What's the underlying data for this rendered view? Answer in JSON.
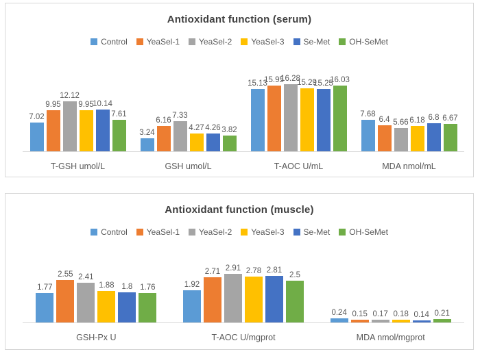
{
  "chart_data": [
    {
      "type": "bar",
      "title": "Antioxidant function (serum)",
      "categories": [
        "T-GSH umol/L",
        "GSH umol/L",
        "T-AOC U/mL",
        "MDA nmol/mL"
      ],
      "series": [
        {
          "name": "Control",
          "color": "#5B9BD5",
          "values": [
            7.02,
            3.24,
            15.13,
            7.68
          ]
        },
        {
          "name": "YeaSel-1",
          "color": "#ED7D31",
          "values": [
            9.95,
            6.16,
            15.95,
            6.4
          ]
        },
        {
          "name": "YeaSel-2",
          "color": "#A5A5A5",
          "values": [
            12.12,
            7.33,
            16.28,
            5.66
          ]
        },
        {
          "name": "YeaSel-3",
          "color": "#FFC000",
          "values": [
            9.95,
            4.27,
            15.29,
            6.18
          ]
        },
        {
          "name": "Se-Met",
          "color": "#4472C4",
          "values": [
            10.14,
            4.26,
            15.25,
            6.8
          ]
        },
        {
          "name": "OH-SeMet",
          "color": "#70AD47",
          "values": [
            7.61,
            3.82,
            16.03,
            6.67
          ]
        }
      ],
      "xlabel": "",
      "ylabel": "",
      "ylim": [
        0,
        18
      ],
      "grid": false,
      "legend_position": "top",
      "data_labels": true
    },
    {
      "type": "bar",
      "title": "Antioxidant function (muscle)",
      "categories": [
        "GSH-Px U",
        "T-AOC U/mgprot",
        "MDA nmol/mgprot"
      ],
      "series": [
        {
          "name": "Control",
          "color": "#5B9BD5",
          "values": [
            1.77,
            1.92,
            0.24
          ]
        },
        {
          "name": "YeaSel-1",
          "color": "#ED7D31",
          "values": [
            2.55,
            2.71,
            0.15
          ]
        },
        {
          "name": "YeaSel-2",
          "color": "#A5A5A5",
          "values": [
            2.41,
            2.91,
            0.17
          ]
        },
        {
          "name": "YeaSel-3",
          "color": "#FFC000",
          "values": [
            1.88,
            2.78,
            0.18
          ]
        },
        {
          "name": "Se-Met",
          "color": "#4472C4",
          "values": [
            1.8,
            2.81,
            0.14
          ]
        },
        {
          "name": "OH-SeMet",
          "color": "#70AD47",
          "values": [
            1.76,
            2.5,
            0.21
          ]
        }
      ],
      "xlabel": "",
      "ylabel": "",
      "ylim": [
        0,
        3.5
      ],
      "grid": false,
      "legend_position": "top",
      "data_labels": true
    }
  ]
}
